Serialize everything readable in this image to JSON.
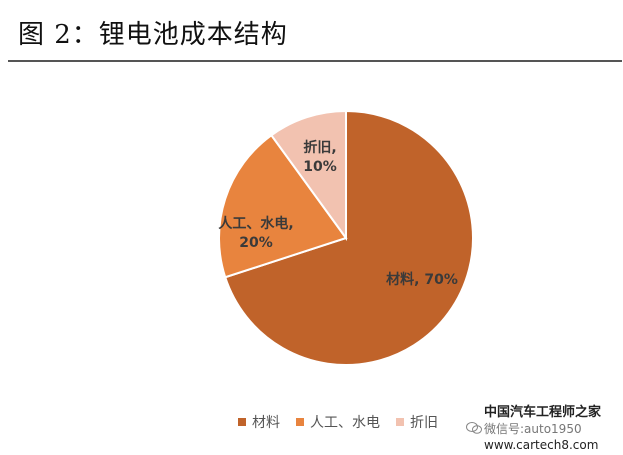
{
  "title": "图  2：锂电池成本结构",
  "chart_data": {
    "type": "pie",
    "slices": [
      {
        "name": "材料",
        "value": 70,
        "label": "材料, 70%",
        "color": "#c0632a"
      },
      {
        "name": "人工、水电",
        "value": 20,
        "label_lines": [
          "人工、水电,",
          "20%"
        ],
        "color": "#e8843e"
      },
      {
        "name": "折旧",
        "value": 10,
        "label_lines": [
          "折旧,",
          "10%"
        ],
        "color": "#f2c2b0"
      }
    ],
    "legend": {
      "placement": "bottom",
      "items": [
        "材料",
        "人工、水电",
        "折旧"
      ]
    }
  },
  "watermark": {
    "line1": "中国汽车工程师之家",
    "line2": "微信号:auto1950",
    "line3": "www.cartech8.com",
    "icon": "wechat-icon"
  }
}
